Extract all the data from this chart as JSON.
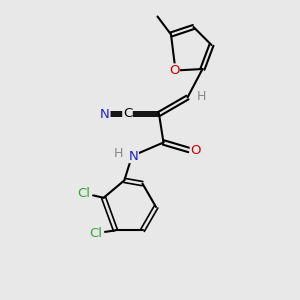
{
  "bg_color": "#e8e8e8",
  "bond_color": "#000000",
  "bond_width": 1.5,
  "atom_colors": {
    "C": "#000000",
    "N": "#2222cc",
    "O": "#cc0000",
    "Cl": "#33aa33",
    "H": "#888888",
    "CN_blue": "#2222cc"
  },
  "font_size": 9.5,
  "figsize": [
    3.0,
    3.0
  ],
  "dpi": 100
}
